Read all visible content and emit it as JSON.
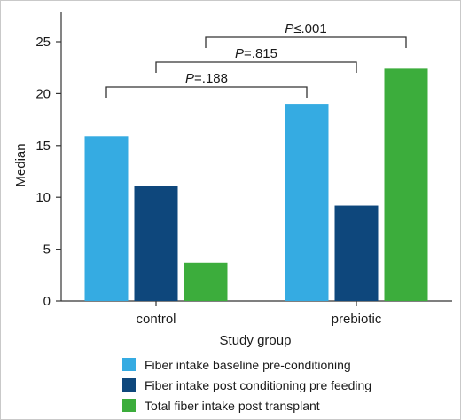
{
  "chart_data": {
    "type": "bar",
    "xlabel": "Study group",
    "ylabel": "Median",
    "ylim": [
      0,
      27.5
    ],
    "yticks": [
      0,
      5,
      10,
      15,
      20,
      25
    ],
    "categories": [
      "control",
      "prebiotic"
    ],
    "series": [
      {
        "name": "Fiber intake baseline pre-conditioning",
        "color": "#35abe2",
        "values": [
          15.9,
          19.0
        ]
      },
      {
        "name": "Fiber intake post conditioning pre feeding",
        "color": "#0e477c",
        "values": [
          11.1,
          9.2
        ]
      },
      {
        "name": "Total fiber intake post transplant",
        "color": "#3cad3c",
        "values": [
          3.7,
          22.4
        ]
      }
    ],
    "legend_position": "bottom",
    "grid": false,
    "annotations": [
      {
        "text": "P=.188",
        "p": "P",
        "rest": "=.188",
        "from": "control|0",
        "to": "prebiotic|0"
      },
      {
        "text": "P=.815",
        "p": "P",
        "rest": "=.815",
        "from": "control|1",
        "to": "prebiotic|1"
      },
      {
        "text": "P≤.001",
        "p": "P",
        "rest": "≤.001",
        "from": "control|2",
        "to": "prebiotic|2"
      }
    ]
  }
}
